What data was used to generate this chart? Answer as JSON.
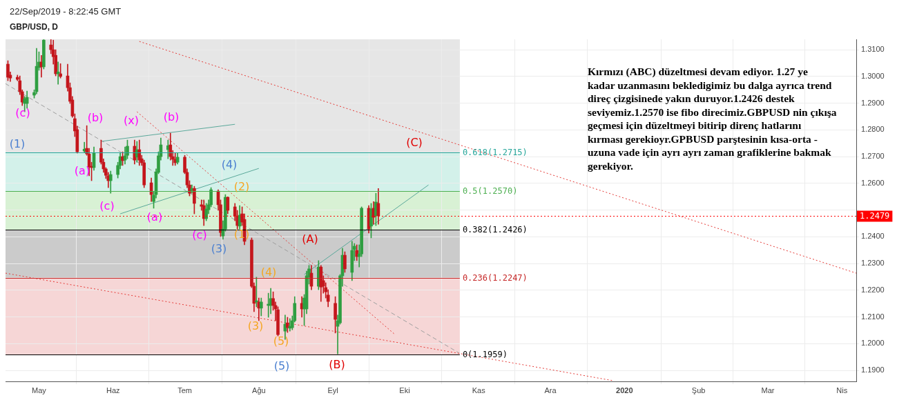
{
  "chart_data": {
    "type": "candlestick",
    "title": "GBP/USD, D",
    "subtitle": "22/Sep/2019 - 8:22:45 GMT",
    "x": [
      "2019-04-18",
      "2019-04-19",
      "2019-04-22",
      "2019-04-23",
      "2019-04-24",
      "2019-04-25",
      "2019-04-26",
      "2019-04-29",
      "2019-04-30",
      "2019-05-01",
      "2019-05-02",
      "2019-05-03",
      "2019-05-06",
      "2019-05-07",
      "2019-05-08",
      "2019-05-09",
      "2019-05-10",
      "2019-05-13",
      "2019-05-14",
      "2019-05-15",
      "2019-05-16",
      "2019-05-17",
      "2019-05-20",
      "2019-05-21",
      "2019-05-22",
      "2019-05-23",
      "2019-05-24",
      "2019-05-27",
      "2019-05-28",
      "2019-05-29",
      "2019-05-30",
      "2019-05-31",
      "2019-06-03",
      "2019-06-04",
      "2019-06-05",
      "2019-06-06",
      "2019-06-07",
      "2019-06-10",
      "2019-06-11",
      "2019-06-12",
      "2019-06-13",
      "2019-06-14",
      "2019-06-17",
      "2019-06-18",
      "2019-06-19",
      "2019-06-20",
      "2019-06-21",
      "2019-06-24",
      "2019-06-25",
      "2019-06-26",
      "2019-06-27",
      "2019-06-28",
      "2019-07-01",
      "2019-07-02",
      "2019-07-03",
      "2019-07-04",
      "2019-07-05",
      "2019-07-08",
      "2019-07-09",
      "2019-07-10",
      "2019-07-11",
      "2019-07-12",
      "2019-07-15",
      "2019-07-16",
      "2019-07-17",
      "2019-07-18",
      "2019-07-19",
      "2019-07-22",
      "2019-07-23",
      "2019-07-24",
      "2019-07-25",
      "2019-07-26",
      "2019-07-29",
      "2019-07-30",
      "2019-07-31",
      "2019-08-01",
      "2019-08-02",
      "2019-08-05",
      "2019-08-06",
      "2019-08-07",
      "2019-08-08",
      "2019-08-09",
      "2019-08-12",
      "2019-08-13",
      "2019-08-14",
      "2019-08-15",
      "2019-08-16",
      "2019-08-19",
      "2019-08-20",
      "2019-08-21",
      "2019-08-22",
      "2019-08-23",
      "2019-08-26",
      "2019-08-27",
      "2019-08-28",
      "2019-08-29",
      "2019-08-30",
      "2019-09-02",
      "2019-09-03",
      "2019-09-04",
      "2019-09-05",
      "2019-09-06",
      "2019-09-09",
      "2019-09-10",
      "2019-09-11",
      "2019-09-12",
      "2019-09-13",
      "2019-09-16",
      "2019-09-17",
      "2019-09-18",
      "2019-09-19",
      "2019-09-20"
    ],
    "ohlc": [
      [
        1.3046,
        1.3059,
        1.2984,
        1.2997
      ],
      [
        1.3005,
        1.3017,
        1.2981,
        1.2994
      ],
      [
        1.2997,
        1.3005,
        1.2984,
        1.2989
      ],
      [
        1.2984,
        1.3002,
        1.2932,
        1.2943
      ],
      [
        1.2943,
        1.295,
        1.2891,
        1.2904
      ],
      [
        1.2899,
        1.2925,
        1.2868,
        1.2917
      ],
      [
        1.2899,
        1.2945,
        1.2881,
        1.2922
      ],
      [
        1.293,
        1.295,
        1.2919,
        1.294
      ],
      [
        1.2943,
        1.3105,
        1.2935,
        1.3038
      ],
      [
        1.3033,
        1.3092,
        1.3023,
        1.3054
      ],
      [
        1.3054,
        1.3079,
        1.2997,
        1.3036
      ],
      [
        1.3036,
        1.3138,
        1.3028,
        1.3136
      ],
      [
        1.3118,
        1.3138,
        1.3085,
        1.31
      ],
      [
        1.31,
        1.3136,
        1.3046,
        1.3074
      ],
      [
        1.3079,
        1.31,
        1.3002,
        1.301
      ],
      [
        1.301,
        1.3054,
        1.2971,
        1.3017
      ],
      [
        1.301,
        1.3048,
        1.2994,
        1.3
      ],
      [
        1.3002,
        1.3046,
        1.2945,
        1.2958
      ],
      [
        1.2958,
        1.2976,
        1.2899,
        1.2907
      ],
      [
        1.2912,
        1.2925,
        1.2847,
        1.2852
      ],
      [
        1.2842,
        1.286,
        1.2775,
        1.2796
      ],
      [
        1.2801,
        1.2814,
        1.2713,
        1.2718
      ],
      [
        1.2721,
        1.2754,
        1.2716,
        1.2728
      ],
      [
        1.2731,
        1.2816,
        1.2705,
        1.271
      ],
      [
        1.271,
        1.2731,
        1.2628,
        1.2661
      ],
      [
        1.2664,
        1.2679,
        1.261,
        1.2659
      ],
      [
        1.2659,
        1.2736,
        1.2649,
        1.2713
      ],
      [
        1.2731,
        1.2762,
        1.2672,
        1.2679
      ],
      [
        1.2679,
        1.2692,
        1.2641,
        1.2654
      ],
      [
        1.2654,
        1.2659,
        1.2618,
        1.263
      ],
      [
        1.2628,
        1.2641,
        1.2584,
        1.261
      ],
      [
        1.261,
        1.2646,
        1.2563,
        1.2633
      ],
      [
        1.2633,
        1.2679,
        1.262,
        1.2667
      ],
      [
        1.2667,
        1.2713,
        1.2654,
        1.27
      ],
      [
        1.27,
        1.2718,
        1.2667,
        1.2685
      ],
      [
        1.2687,
        1.2736,
        1.2672,
        1.2703
      ],
      [
        1.2705,
        1.2762,
        1.2692,
        1.2739
      ],
      [
        1.2739,
        1.2762,
        1.2672,
        1.2687
      ],
      [
        1.2698,
        1.2757,
        1.2679,
        1.2726
      ],
      [
        1.2726,
        1.2762,
        1.2667,
        1.2687
      ],
      [
        1.2692,
        1.2705,
        1.2667,
        1.2677
      ],
      [
        1.2677,
        1.2687,
        1.2584,
        1.2594
      ],
      [
        1.2602,
        1.262,
        1.2532,
        1.2558
      ],
      [
        1.2532,
        1.2568,
        1.2507,
        1.2556
      ],
      [
        1.2558,
        1.2654,
        1.2545,
        1.2643
      ],
      [
        1.2641,
        1.2718,
        1.2636,
        1.2703
      ],
      [
        1.27,
        1.277,
        1.2687,
        1.2744
      ],
      [
        1.2726,
        1.2762,
        1.2692,
        1.2741
      ],
      [
        1.2744,
        1.2788,
        1.2687,
        1.27
      ],
      [
        1.27,
        1.2723,
        1.2667,
        1.269
      ],
      [
        1.269,
        1.2713,
        1.2667,
        1.2677
      ],
      [
        1.2679,
        1.2713,
        1.2672,
        1.2698
      ],
      [
        1.2698,
        1.2705,
        1.2636,
        1.2641
      ],
      [
        1.2641,
        1.2654,
        1.2584,
        1.2594
      ],
      [
        1.2594,
        1.261,
        1.2553,
        1.2563
      ],
      [
        1.2574,
        1.2594,
        1.2563,
        1.2581
      ],
      [
        1.2581,
        1.2589,
        1.2486,
        1.2525
      ],
      [
        1.252,
        1.2538,
        1.2499,
        1.2514
      ],
      [
        1.2517,
        1.2538,
        1.2442,
        1.2468
      ],
      [
        1.2468,
        1.2525,
        1.246,
        1.2504
      ],
      [
        1.2501,
        1.2538,
        1.2486,
        1.252
      ],
      [
        1.252,
        1.2584,
        1.2512,
        1.2576
      ],
      [
        1.2571,
        1.2576,
        1.2499,
        1.252
      ],
      [
        1.252,
        1.2538,
        1.2401,
        1.2416
      ],
      [
        1.2403,
        1.246,
        1.2391,
        1.2429
      ],
      [
        1.2429,
        1.2558,
        1.2421,
        1.2548
      ],
      [
        1.2548,
        1.255,
        1.2486,
        1.2499
      ],
      [
        1.2512,
        1.2525,
        1.246,
        1.2478
      ],
      [
        1.2478,
        1.2499,
        1.2429,
        1.2442
      ],
      [
        1.244,
        1.2517,
        1.2429,
        1.2481
      ],
      [
        1.2486,
        1.2512,
        1.2442,
        1.2455
      ],
      [
        1.2465,
        1.2486,
        1.237,
        1.2383
      ],
      [
        1.2388,
        1.2396,
        1.221,
        1.2215
      ],
      [
        1.2215,
        1.2228,
        1.212,
        1.2151
      ],
      [
        1.2156,
        1.2249,
        1.2138,
        1.2161
      ],
      [
        1.2156,
        1.2171,
        1.2086,
        1.2133
      ],
      [
        1.2133,
        1.2171,
        1.2104,
        1.2156
      ],
      [
        1.2143,
        1.2189,
        1.2099,
        1.2148
      ],
      [
        1.2143,
        1.2207,
        1.2112,
        1.2169
      ],
      [
        1.2169,
        1.2194,
        1.2125,
        1.2143
      ],
      [
        1.2143,
        1.2156,
        1.2086,
        1.213
      ],
      [
        1.2127,
        1.2138,
        1.2029,
        1.2034
      ],
      [
        1.2047,
        1.2107,
        1.2016,
        1.2073
      ],
      [
        1.2078,
        1.2099,
        1.2042,
        1.206
      ],
      [
        1.2058,
        1.2094,
        1.2047,
        1.2065
      ],
      [
        1.206,
        1.2104,
        1.2052,
        1.2086
      ],
      [
        1.2086,
        1.2176,
        1.2081,
        1.2151
      ],
      [
        1.2151,
        1.2176,
        1.2099,
        1.213
      ],
      [
        1.213,
        1.2184,
        1.2068,
        1.2171
      ],
      [
        1.213,
        1.2272,
        1.2112,
        1.2254
      ],
      [
        1.2249,
        1.2293,
        1.2223,
        1.228
      ],
      [
        1.2264,
        1.2293,
        1.2202,
        1.2215
      ],
      [
        1.2215,
        1.2311,
        1.2202,
        1.2287
      ],
      [
        1.2287,
        1.2293,
        1.2158,
        1.2212
      ],
      [
        1.2236,
        1.2254,
        1.2189,
        1.2215
      ],
      [
        1.221,
        1.2228,
        1.2171,
        1.2194
      ],
      [
        1.2182,
        1.2202,
        1.2138,
        1.2158
      ],
      [
        1.2151,
        1.2176,
        1.204,
        1.2091
      ],
      [
        1.2065,
        1.2107,
        1.1962,
        1.2086
      ],
      [
        1.2078,
        1.2259,
        1.2073,
        1.2254
      ],
      [
        1.2254,
        1.2357,
        1.2215,
        1.2331
      ],
      [
        1.2331,
        1.2344,
        1.2267,
        1.228
      ],
      [
        1.2267,
        1.2383,
        1.2236,
        1.2349
      ],
      [
        1.2352,
        1.2375,
        1.2311,
        1.2365
      ],
      [
        1.2349,
        1.237,
        1.2311,
        1.2326
      ],
      [
        1.2326,
        1.237,
        1.2287,
        1.2336
      ],
      [
        1.2336,
        1.2512,
        1.2326,
        1.2507
      ],
      [
        1.2507,
        1.2517,
        1.2414,
        1.2429
      ],
      [
        1.244,
        1.2525,
        1.2396,
        1.2504
      ],
      [
        1.2507,
        1.2532,
        1.2447,
        1.2473
      ],
      [
        1.2478,
        1.2563,
        1.2442,
        1.253
      ],
      [
        1.2525,
        1.2581,
        1.2447,
        1.2479
      ]
    ],
    "colors": [
      "#c4161c",
      "#c4161c",
      "#c4161c",
      "#c4161c",
      "#c4161c",
      "#2f9e41",
      "#2f9e41",
      "#2f9e41",
      "#2f9e41",
      "#2f9e41",
      "#c4161c",
      "#2f9e41",
      "#c4161c",
      "#c4161c",
      "#c4161c",
      "#2f9e41",
      "#c4161c",
      "#c4161c",
      "#c4161c",
      "#c4161c",
      "#c4161c",
      "#c4161c",
      "#2f9e41",
      "#c4161c",
      "#c4161c",
      "#c4161c",
      "#2f9e41",
      "#c4161c",
      "#c4161c",
      "#c4161c",
      "#c4161c",
      "#2f9e41",
      "#2f9e41",
      "#2f9e41",
      "#c4161c",
      "#2f9e41",
      "#2f9e41",
      "#c4161c",
      "#2f9e41",
      "#c4161c",
      "#c4161c",
      "#c4161c",
      "#c4161c",
      "#2f9e41",
      "#2f9e41",
      "#2f9e41",
      "#2f9e41",
      "#2f9e41",
      "#c4161c",
      "#c4161c",
      "#c4161c",
      "#2f9e41",
      "#c4161c",
      "#c4161c",
      "#c4161c",
      "#2f9e41",
      "#c4161c",
      "#c4161c",
      "#c4161c",
      "#2f9e41",
      "#2f9e41",
      "#2f9e41",
      "#c4161c",
      "#c4161c",
      "#2f9e41",
      "#2f9e41",
      "#c4161c",
      "#c4161c",
      "#c4161c",
      "#2f9e41",
      "#c4161c",
      "#c4161c",
      "#c4161c",
      "#c4161c",
      "#2f9e41",
      "#c4161c",
      "#2f9e41",
      "#2f9e41",
      "#2f9e41",
      "#c4161c",
      "#c4161c",
      "#c4161c",
      "#2f9e41",
      "#c4161c",
      "#2f9e41",
      "#2f9e41",
      "#2f9e41",
      "#c4161c",
      "#2f9e41",
      "#2f9e41",
      "#2f9e41",
      "#c4161c",
      "#2f9e41",
      "#c4161c",
      "#c4161c",
      "#c4161c",
      "#c4161c",
      "#c4161c",
      "#2f9e41",
      "#2f9e41",
      "#2f9e41",
      "#c4161c",
      "#2f9e41",
      "#2f9e41",
      "#c4161c",
      "#2f9e41",
      "#2f9e41",
      "#c4161c",
      "#2f9e41",
      "#c4161c",
      "#2f9e41",
      "#c4161c"
    ],
    "series": [
      {
        "type": "line",
        "color": "#e53935",
        "line_style": "dotted",
        "x": [
          "2019-06-12",
          "2020-04-07"
        ],
        "values": [
          1.3131,
          1.2264
        ]
      },
      {
        "type": "line",
        "color": "#e53935",
        "line_style": "dotted",
        "x": [
          "2019-04-17",
          "2019-12-27"
        ],
        "values": [
          1.2264,
          1.1862
        ]
      },
      {
        "type": "line",
        "color": "#e53935",
        "line_style": "dotted",
        "x": [
          "2019-06-11",
          "2019-09-27"
        ],
        "values": [
          1.2868,
          1.2034
        ]
      },
      {
        "type": "line",
        "color": "#9e9e9e",
        "line_style": "dashed",
        "x": [
          "2019-04-17",
          "2019-10-24"
        ],
        "values": [
          1.2973,
          1.1964
        ]
      },
      {
        "type": "line",
        "color": "#5aa89a",
        "line_style": "solid",
        "x": [
          "2019-05-27",
          "2019-07-22"
        ],
        "values": [
          1.2757,
          1.2821
        ]
      },
      {
        "type": "line",
        "color": "#5aa89a",
        "line_style": "solid",
        "x": [
          "2019-06-04",
          "2019-08-01"
        ],
        "values": [
          1.2486,
          1.2656
        ]
      },
      {
        "type": "line",
        "color": "#5aa89a",
        "line_style": "solid",
        "x": [
          "2019-08-20",
          "2019-10-11"
        ],
        "values": [
          1.2259,
          1.2594
        ]
      }
    ],
    "bands": [
      {
        "axis": "y",
        "from": 1.2715,
        "to": 1.3139,
        "color": "#e6e6e6"
      },
      {
        "axis": "y",
        "from": 1.257,
        "to": 1.2715,
        "color": "#d3f1ea"
      },
      {
        "axis": "y",
        "from": 1.2426,
        "to": 1.257,
        "color": "#d8f1d4"
      },
      {
        "axis": "y",
        "from": 1.2247,
        "to": 1.2426,
        "color": "#cbcbcb"
      },
      {
        "axis": "y",
        "from": 1.1959,
        "to": 1.2247,
        "color": "#f6d6d6"
      }
    ],
    "ref_lines": [
      {
        "axis": "y",
        "value": 1.2715,
        "label": "0.618(1.2715)",
        "color": "#26a69a",
        "line_style": "solid"
      },
      {
        "axis": "y",
        "value": 1.257,
        "label": "0.5(1.2570)",
        "color": "#4caf50",
        "line_style": "solid"
      },
      {
        "axis": "y",
        "value": 1.2426,
        "label": "0.382(1.2426)",
        "color": "#000000",
        "line_style": "solid"
      },
      {
        "axis": "y",
        "value": 1.2247,
        "label": "0.236(1.2247)",
        "color": "#c62828",
        "line_style": "solid"
      },
      {
        "axis": "y",
        "value": 1.1959,
        "label": "0(1.1959)",
        "color": "#000000",
        "line_style": "solid"
      },
      {
        "axis": "y",
        "value": 1.2479,
        "label": "1.2479",
        "color": "#ff0000",
        "line_style": "dotted"
      }
    ],
    "annotations": [
      "(c)",
      "(b)",
      "(x)",
      "(b)",
      "(1)",
      "(a)",
      "(c)",
      "(a)",
      "(4)",
      "(2)",
      "(c)",
      "(1)",
      "(3)",
      "(A)",
      "(4)",
      "(3)",
      "(5)",
      "(5)",
      "(B)",
      "(C)",
      "Kırmızı (ABC) düzeltmesi devam ediyor. 1.27 ye kadar uzanmasını bekledigimiz bu dalga ayrıca trend direç çizgisinede yakın duruyor.1.2426 destek seviyemiz.1.2570 ise fibo direcimiz.GBPUSD nin çıkışa geçmesi için düzeltmeyi bitirip direnç hatlarını kırması gerekioyr.GPBUSD parştesinin kısa-orta -uzuna vade için ayrı ayrı zaman grafiklerine bakmak gerekiyor."
    ],
    "xlim": [
      "2019-04-17",
      "2020-04-07"
    ],
    "xticks": [
      {
        "value": "2019-05-01",
        "label": "May"
      },
      {
        "value": "2019-06-01",
        "label": "Haz"
      },
      {
        "value": "2019-07-01",
        "label": "Tem"
      },
      {
        "value": "2019-08-01",
        "label": "Ağu"
      },
      {
        "value": "2019-09-01",
        "label": "Eyl"
      },
      {
        "value": "2019-10-01",
        "label": "Eki"
      },
      {
        "value": "2019-11-01",
        "label": "Kas"
      },
      {
        "value": "2019-12-01",
        "label": "Ara"
      },
      {
        "value": "2020-01-01",
        "label": "2020"
      },
      {
        "value": "2020-02-01",
        "label": "Şub"
      },
      {
        "value": "2020-03-01",
        "label": "Mar"
      },
      {
        "value": "2020-04-01",
        "label": "Nis"
      }
    ],
    "ylim": [
      1.1859,
      1.3139
    ],
    "yticks": [
      {
        "value": 1.19,
        "label": "1.1900"
      },
      {
        "value": 1.2,
        "label": "1.2000"
      },
      {
        "value": 1.21,
        "label": "1.2100"
      },
      {
        "value": 1.22,
        "label": "1.2200"
      },
      {
        "value": 1.23,
        "label": "1.2300"
      },
      {
        "value": 1.24,
        "label": "1.2400"
      },
      {
        "value": 1.25,
        "label": null
      },
      {
        "value": 1.26,
        "label": "1.2600"
      },
      {
        "value": 1.27,
        "label": "1.2700"
      },
      {
        "value": 1.28,
        "label": "1.2800"
      },
      {
        "value": 1.29,
        "label": "1.2900"
      },
      {
        "value": 1.3,
        "label": "1.3000"
      },
      {
        "value": 1.31,
        "label": "1.3100"
      }
    ],
    "grid": true,
    "legend": false
  }
}
